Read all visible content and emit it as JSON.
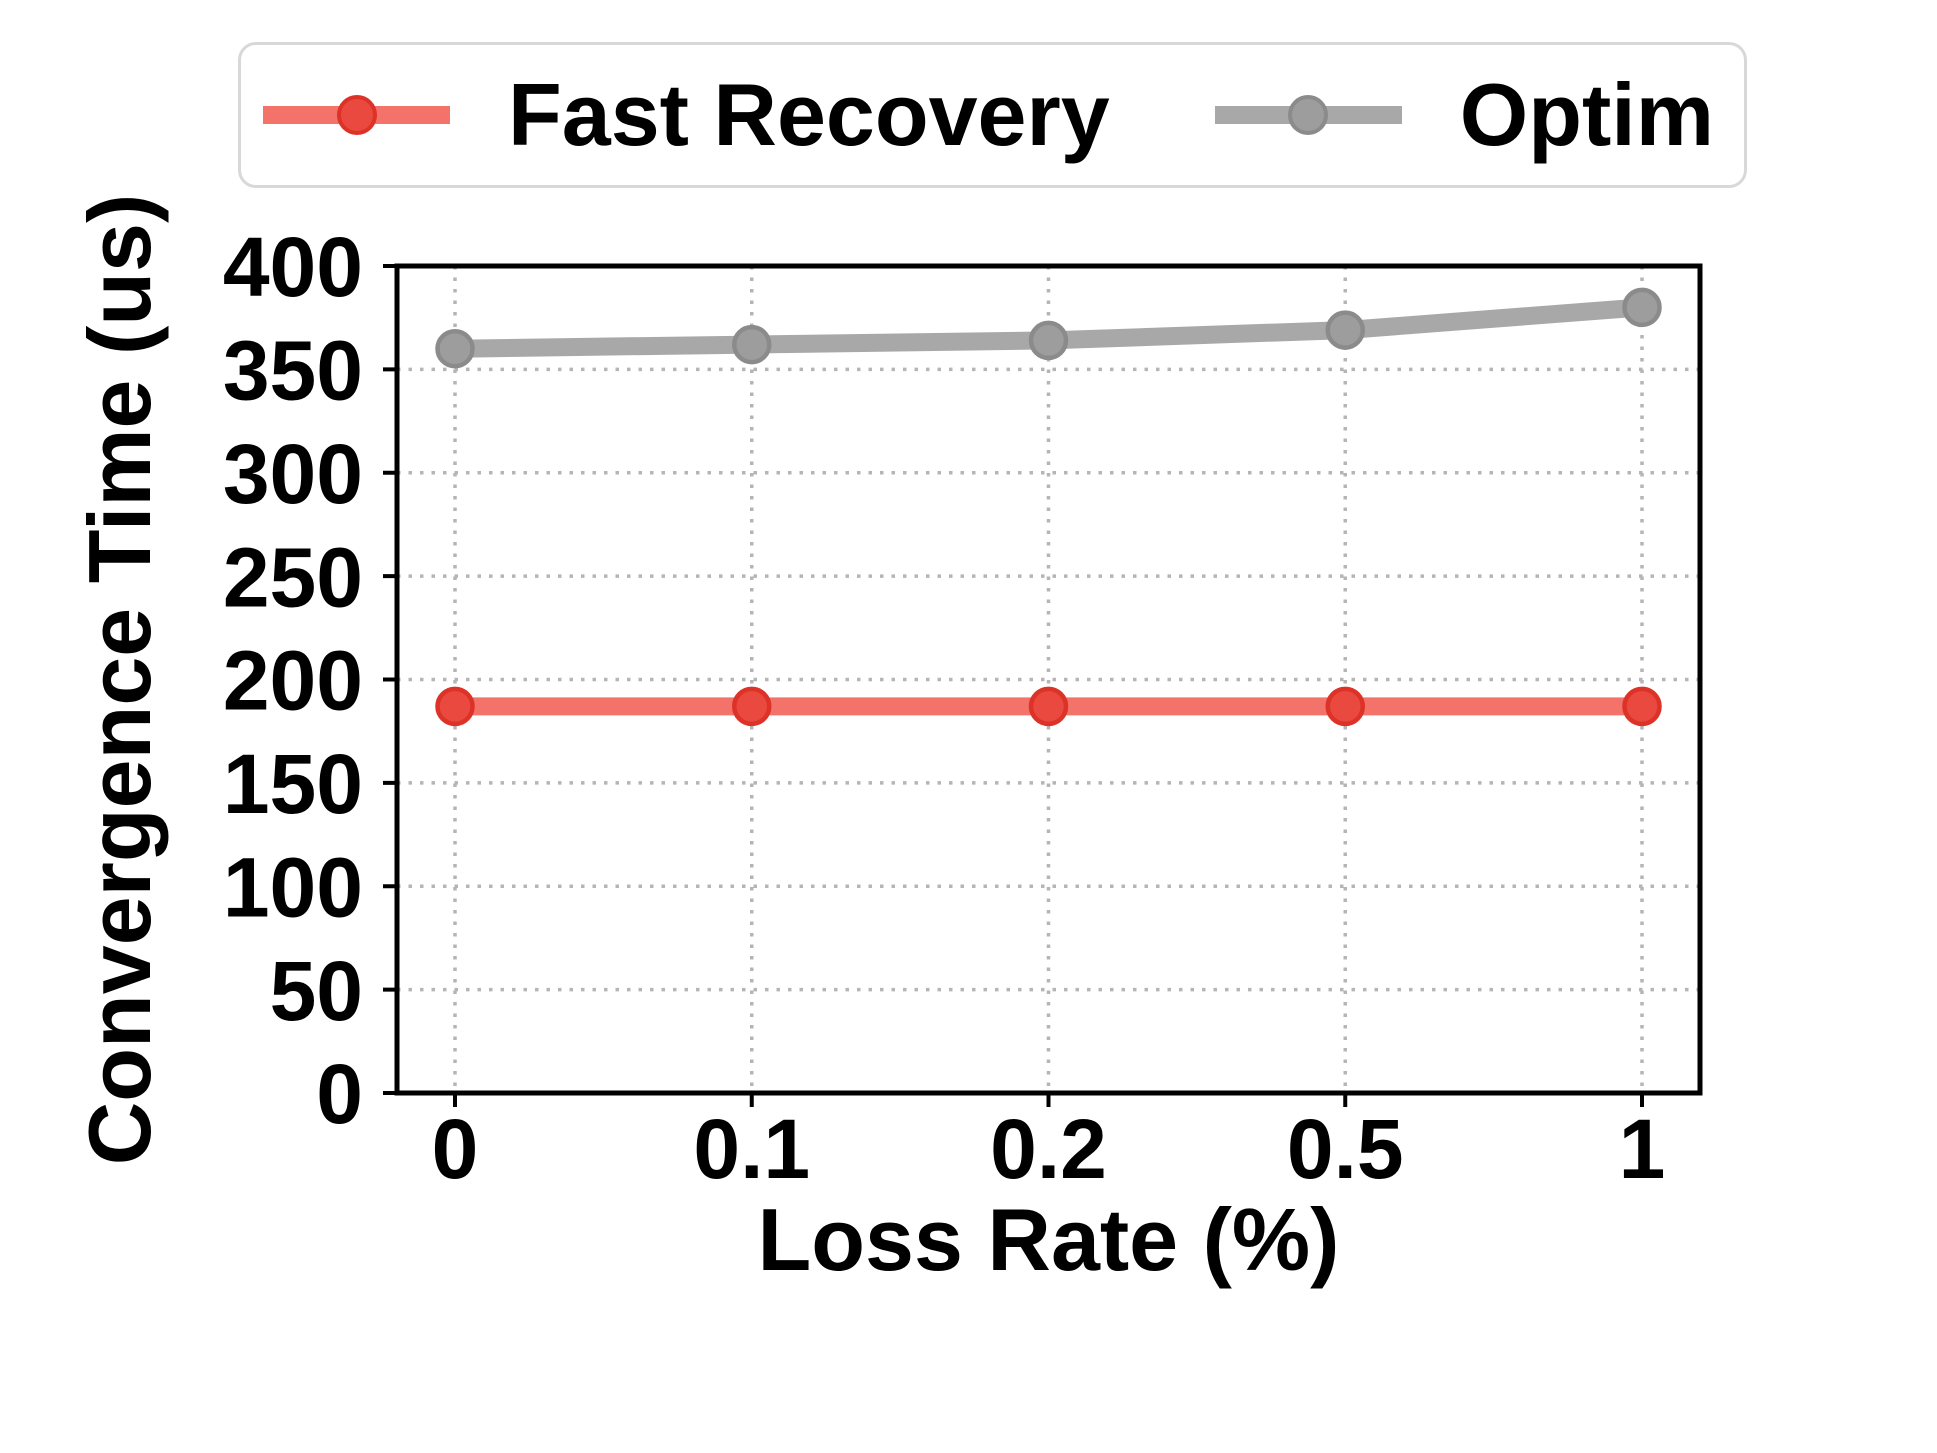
{
  "chart_data": {
    "type": "line",
    "title": "",
    "xlabel": "Loss Rate (%)",
    "ylabel": "Convergence Time (us)",
    "categories": [
      "0",
      "0.1",
      "0.2",
      "0.5",
      "1"
    ],
    "ylim": [
      0,
      400
    ],
    "yticks": [
      0,
      50,
      100,
      150,
      200,
      250,
      300,
      350,
      400
    ],
    "grid": "dotted",
    "legend_position": "top",
    "series": [
      {
        "name": "Fast Recovery",
        "values": [
          187,
          187,
          187,
          187,
          187
        ],
        "line_color": "#f3736b",
        "marker_color": "#e9493e",
        "marker_edge_color": "#dd3227",
        "marker": "circle"
      },
      {
        "name": "Optim",
        "values": [
          360,
          362,
          364,
          369,
          380
        ],
        "line_color": "#a8a8a8",
        "marker_color": "#9d9d9d",
        "marker_edge_color": "#8b8b8b",
        "marker": "circle"
      }
    ]
  },
  "colors": {
    "background": "#ffffff",
    "axis": "#000000",
    "grid": "#b5b5b5",
    "legend_border": "#d8d8d8",
    "text": "#000000"
  }
}
